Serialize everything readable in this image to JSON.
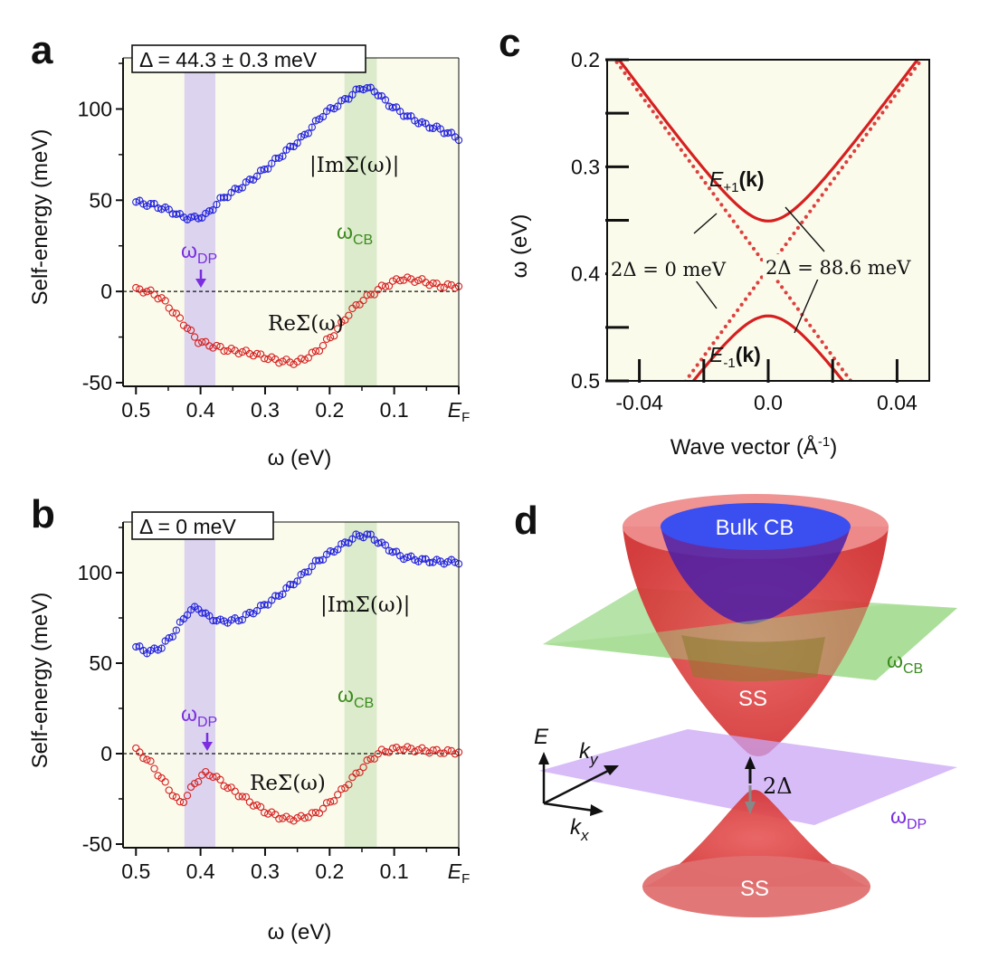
{
  "figure": {
    "panel_letters": {
      "a": "a",
      "b": "b",
      "c": "c",
      "d": "d"
    }
  },
  "chart_data": [
    {
      "id": "a",
      "type": "scatter",
      "title_box": "Δ = 44.3 ± 0.3 meV",
      "xlabel": "ω (eV)",
      "ylabel": "Self-energy (meV)",
      "xlim": [
        0.52,
        0.0
      ],
      "ylim": [
        -52,
        128
      ],
      "xticks": [
        0.5,
        0.4,
        0.3,
        0.2,
        0.1,
        0.0
      ],
      "xtick_labels": [
        "0.5",
        "0.4",
        "0.3",
        "0.2",
        "0.1",
        "E"
      ],
      "ef_subscript": "F",
      "yticks": [
        -50,
        0,
        50,
        100
      ],
      "ytick_labels": [
        "-50",
        "0",
        "50",
        "100"
      ],
      "bands": [
        {
          "name": "ωDP",
          "from": 0.425,
          "to": 0.377,
          "color": "#d6cdf0"
        },
        {
          "name": "ωCB",
          "from": 0.177,
          "to": 0.127,
          "color": "#d6e8c6"
        }
      ],
      "background_color": "#fbfbec",
      "labels": {
        "im": "|ImΣ(ω)|",
        "re": "ReΣ(ω)",
        "wdp_main": "ω",
        "wdp_sub": "DP",
        "wcb_main": "ω",
        "wcb_sub": "CB"
      },
      "series": [
        {
          "name": "|ImΣ(ω)|",
          "color": "#2424dd",
          "knots": [
            [
              0.5,
              49
            ],
            [
              0.47,
              47
            ],
            [
              0.445,
              44
            ],
            [
              0.43,
              41
            ],
            [
              0.41,
              40
            ],
            [
              0.39,
              42
            ],
            [
              0.37,
              50
            ],
            [
              0.33,
              59
            ],
            [
              0.3,
              67
            ],
            [
              0.27,
              76
            ],
            [
              0.24,
              85
            ],
            [
              0.21,
              97
            ],
            [
              0.18,
              104
            ],
            [
              0.15,
              112
            ],
            [
              0.13,
              110
            ],
            [
              0.11,
              103
            ],
            [
              0.08,
              96
            ],
            [
              0.05,
              91
            ],
            [
              0.03,
              89
            ],
            [
              0.0,
              84
            ]
          ]
        },
        {
          "name": "ReΣ(ω)",
          "color": "#d62020",
          "knots": [
            [
              0.5,
              1
            ],
            [
              0.48,
              0
            ],
            [
              0.46,
              -4
            ],
            [
              0.44,
              -12
            ],
            [
              0.42,
              -20
            ],
            [
              0.405,
              -27
            ],
            [
              0.39,
              -29
            ],
            [
              0.36,
              -32
            ],
            [
              0.32,
              -34
            ],
            [
              0.28,
              -38
            ],
            [
              0.25,
              -39
            ],
            [
              0.22,
              -33
            ],
            [
              0.19,
              -22
            ],
            [
              0.17,
              -12
            ],
            [
              0.15,
              -5
            ],
            [
              0.12,
              2
            ],
            [
              0.09,
              7
            ],
            [
              0.06,
              6
            ],
            [
              0.03,
              3
            ],
            [
              0.0,
              3
            ]
          ]
        }
      ]
    },
    {
      "id": "b",
      "type": "scatter",
      "title_box": "Δ = 0 meV",
      "xlabel": "ω (eV)",
      "ylabel": "Self-energy (meV)",
      "xlim": [
        0.52,
        0.0
      ],
      "ylim": [
        -52,
        128
      ],
      "xticks": [
        0.5,
        0.4,
        0.3,
        0.2,
        0.1,
        0.0
      ],
      "xtick_labels": [
        "0.5",
        "0.4",
        "0.3",
        "0.2",
        "0.1",
        "E"
      ],
      "ef_subscript": "F",
      "yticks": [
        -50,
        0,
        50,
        100
      ],
      "ytick_labels": [
        "-50",
        "0",
        "50",
        "100"
      ],
      "bands": [
        {
          "name": "ωDP",
          "from": 0.425,
          "to": 0.377,
          "color": "#d6cdf0"
        },
        {
          "name": "ωCB",
          "from": 0.177,
          "to": 0.127,
          "color": "#d6e8c6"
        }
      ],
      "background_color": "#fbfbec",
      "labels": {
        "im": "|ImΣ(ω)|",
        "re": "ReΣ(ω)",
        "wdp_main": "ω",
        "wdp_sub": "DP",
        "wcb_main": "ω",
        "wcb_sub": "CB"
      },
      "series": [
        {
          "name": "|ImΣ(ω)|",
          "color": "#2424dd",
          "knots": [
            [
              0.5,
              59
            ],
            [
              0.48,
              56
            ],
            [
              0.46,
              59
            ],
            [
              0.44,
              67
            ],
            [
              0.42,
              78
            ],
            [
              0.405,
              81
            ],
            [
              0.39,
              76
            ],
            [
              0.37,
              73
            ],
            [
              0.34,
              74
            ],
            [
              0.31,
              80
            ],
            [
              0.28,
              87
            ],
            [
              0.25,
              96
            ],
            [
              0.22,
              106
            ],
            [
              0.19,
              113
            ],
            [
              0.16,
              120
            ],
            [
              0.14,
              121
            ],
            [
              0.12,
              116
            ],
            [
              0.09,
              109
            ],
            [
              0.06,
              107
            ],
            [
              0.03,
              106
            ],
            [
              0.0,
              106
            ]
          ]
        },
        {
          "name": "ReΣ(ω)",
          "color": "#d62020",
          "knots": [
            [
              0.5,
              2
            ],
            [
              0.48,
              -4
            ],
            [
              0.46,
              -14
            ],
            [
              0.44,
              -24
            ],
            [
              0.43,
              -28
            ],
            [
              0.41,
              -17
            ],
            [
              0.395,
              -11
            ],
            [
              0.38,
              -12
            ],
            [
              0.36,
              -18
            ],
            [
              0.33,
              -25
            ],
            [
              0.3,
              -32
            ],
            [
              0.27,
              -36
            ],
            [
              0.25,
              -36
            ],
            [
              0.22,
              -33
            ],
            [
              0.19,
              -24
            ],
            [
              0.16,
              -12
            ],
            [
              0.14,
              -4
            ],
            [
              0.12,
              1
            ],
            [
              0.09,
              3
            ],
            [
              0.06,
              2
            ],
            [
              0.03,
              1
            ],
            [
              0.0,
              1
            ]
          ]
        }
      ]
    },
    {
      "id": "c",
      "type": "line",
      "xlabel": "Wave vector (Å",
      "xlabel_sup": "-1",
      "xlabel_close": ")",
      "ylabel": "ω (eV)",
      "xlim": [
        -0.05,
        0.05
      ],
      "ylim": [
        0.5,
        0.2
      ],
      "xticks_major": [
        -0.04,
        0.0,
        0.04
      ],
      "xtick_labels": [
        "-0.04",
        "0.0",
        "0.04"
      ],
      "xticks_minor": [
        -0.02,
        0.02
      ],
      "yticks_major": [
        0.2,
        0.3,
        0.4,
        0.5
      ],
      "ytick_labels": [
        "0.2",
        "0.3",
        "0.4",
        "0.5"
      ],
      "yticks_minor": [
        0.25,
        0.35,
        0.45
      ],
      "background_color": "#fbfbec",
      "model": {
        "dirac_point_eV": 0.395,
        "velocity_eV_A": 4.1
      },
      "series": [
        {
          "name": "2Δ = 0 meV",
          "gap_eV": 0.0,
          "style": "dotted",
          "color": "#d62020"
        },
        {
          "name": "2Δ = 88.6 meV",
          "gap_eV": 0.0886,
          "style": "solid",
          "color": "#d62020"
        }
      ],
      "labels": {
        "upper": "E",
        "upper_sub": "+1",
        "upper_k": "(k)",
        "lower": "E",
        "lower_sub": "-1",
        "lower_k": "(k)",
        "gap_zero": "2Δ = 0 meV",
        "gap_finite": "2Δ = 88.6 meV"
      }
    }
  ],
  "diagram_d": {
    "bulk_cb": "Bulk CB",
    "ss_upper": "SS",
    "ss_lower": "SS",
    "gap": "2Δ",
    "wcb_main": "ω",
    "wcb_sub": "CB",
    "wdp_main": "ω",
    "wdp_sub": "DP",
    "axis_e": "E",
    "axis_ky": "k",
    "axis_ky_sub": "y",
    "axis_kx": "k",
    "axis_kx_sub": "x",
    "colors": {
      "cone": "#d93a3a",
      "bulk": "#3b4ef0",
      "plane_cb": "#9ed98a",
      "plane_dp": "#c9a6f5",
      "wcb": "#3a8a1e",
      "wdp": "#7a2ee0"
    }
  }
}
